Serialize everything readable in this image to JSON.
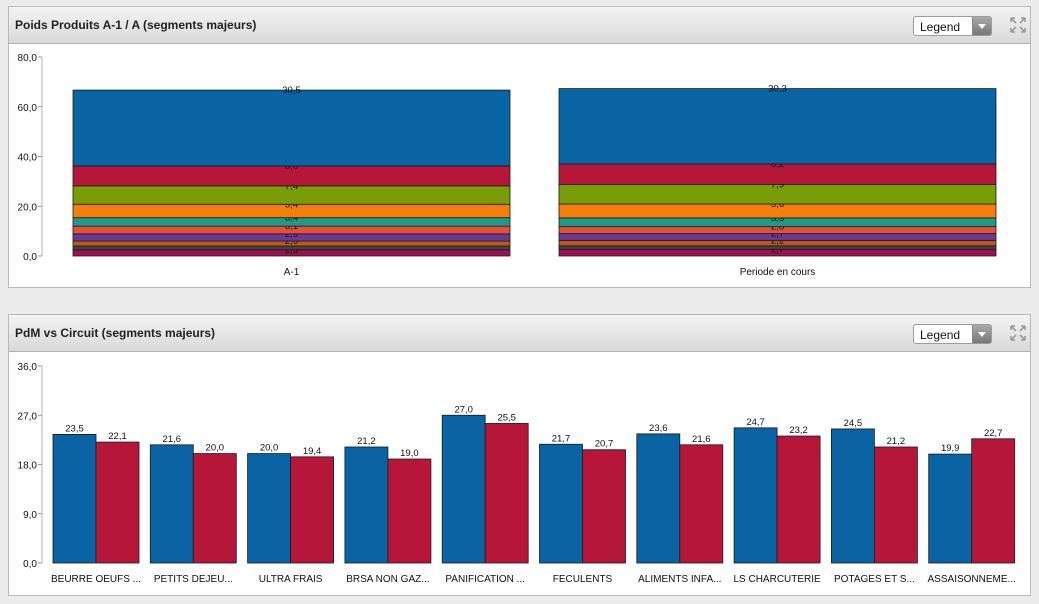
{
  "panels": [
    {
      "title": "Poids Produits A-1 / A (segments majeurs)",
      "legend_label": "Legend"
    },
    {
      "title": "PdM vs Circuit (segments majeurs)",
      "legend_label": "Legend"
    }
  ],
  "chart_data": [
    {
      "type": "bar",
      "stacked": true,
      "ylim": [
        0,
        80
      ],
      "yticks": [
        "0,0",
        "20,0",
        "40,0",
        "60,0",
        "80,0"
      ],
      "categories": [
        "A-1",
        "Periode en cours"
      ],
      "colors": [
        "#9b1053",
        "#444444",
        "#b85a18",
        "#6a3896",
        "#e3503a",
        "#1d9a8c",
        "#f57e0b",
        "#789d06",
        "#b6163a",
        "#0a63a3"
      ],
      "series": [
        {
          "values": [
            2.5,
            2.7
          ],
          "labels": [
            "2,5",
            "2,7"
          ]
        },
        {
          "values": [
            1.5,
            1.4
          ],
          "labels": [
            "",
            ""
          ]
        },
        {
          "values": [
            2.0,
            2.2
          ],
          "labels": [
            "2,0",
            "2,2"
          ]
        },
        {
          "values": [
            2.9,
            2.7
          ],
          "labels": [
            "2,9",
            "2,7"
          ]
        },
        {
          "values": [
            3.1,
            2.8
          ],
          "labels": [
            "3,1",
            "2,8"
          ]
        },
        {
          "values": [
            3.4,
            3.5
          ],
          "labels": [
            "3,4",
            "3,5"
          ]
        },
        {
          "values": [
            5.4,
            5.6
          ],
          "labels": [
            "5,4",
            "5,6"
          ]
        },
        {
          "values": [
            7.4,
            7.9
          ],
          "labels": [
            "7,4",
            "7,9"
          ]
        },
        {
          "values": [
            8.0,
            8.2
          ],
          "labels": [
            "8,0",
            "8,2"
          ]
        },
        {
          "values": [
            30.5,
            30.3
          ],
          "labels": [
            "30,5",
            "30,3"
          ]
        }
      ]
    },
    {
      "type": "bar",
      "ylim": [
        0,
        36
      ],
      "yticks": [
        "0,0",
        "9,0",
        "18,0",
        "27,0",
        "36,0"
      ],
      "categories": [
        "BEURRE OEUFS ...",
        "PETITS DEJEU...",
        "ULTRA FRAIS",
        "BRSA NON GAZ...",
        "PANIFICATION ...",
        "FECULENTS",
        "ALIMENTS INFA...",
        "LS CHARCUTERIE",
        "POTAGES ET S...",
        "ASSAISONNEME..."
      ],
      "series": [
        {
          "color": "#0a63a3",
          "values": [
            23.5,
            21.6,
            20.0,
            21.2,
            27.0,
            21.7,
            23.6,
            24.7,
            24.5,
            19.9
          ],
          "labels": [
            "23,5",
            "21,6",
            "20,0",
            "21,2",
            "27,0",
            "21,7",
            "23,6",
            "24,7",
            "24,5",
            "19,9"
          ]
        },
        {
          "color": "#b6163a",
          "values": [
            22.1,
            20.0,
            19.4,
            19.0,
            25.5,
            20.7,
            21.6,
            23.2,
            21.2,
            22.7
          ],
          "labels": [
            "22,1",
            "20,0",
            "19,4",
            "19,0",
            "25,5",
            "20,7",
            "21,6",
            "23,2",
            "21,2",
            "22,7"
          ]
        }
      ]
    }
  ]
}
